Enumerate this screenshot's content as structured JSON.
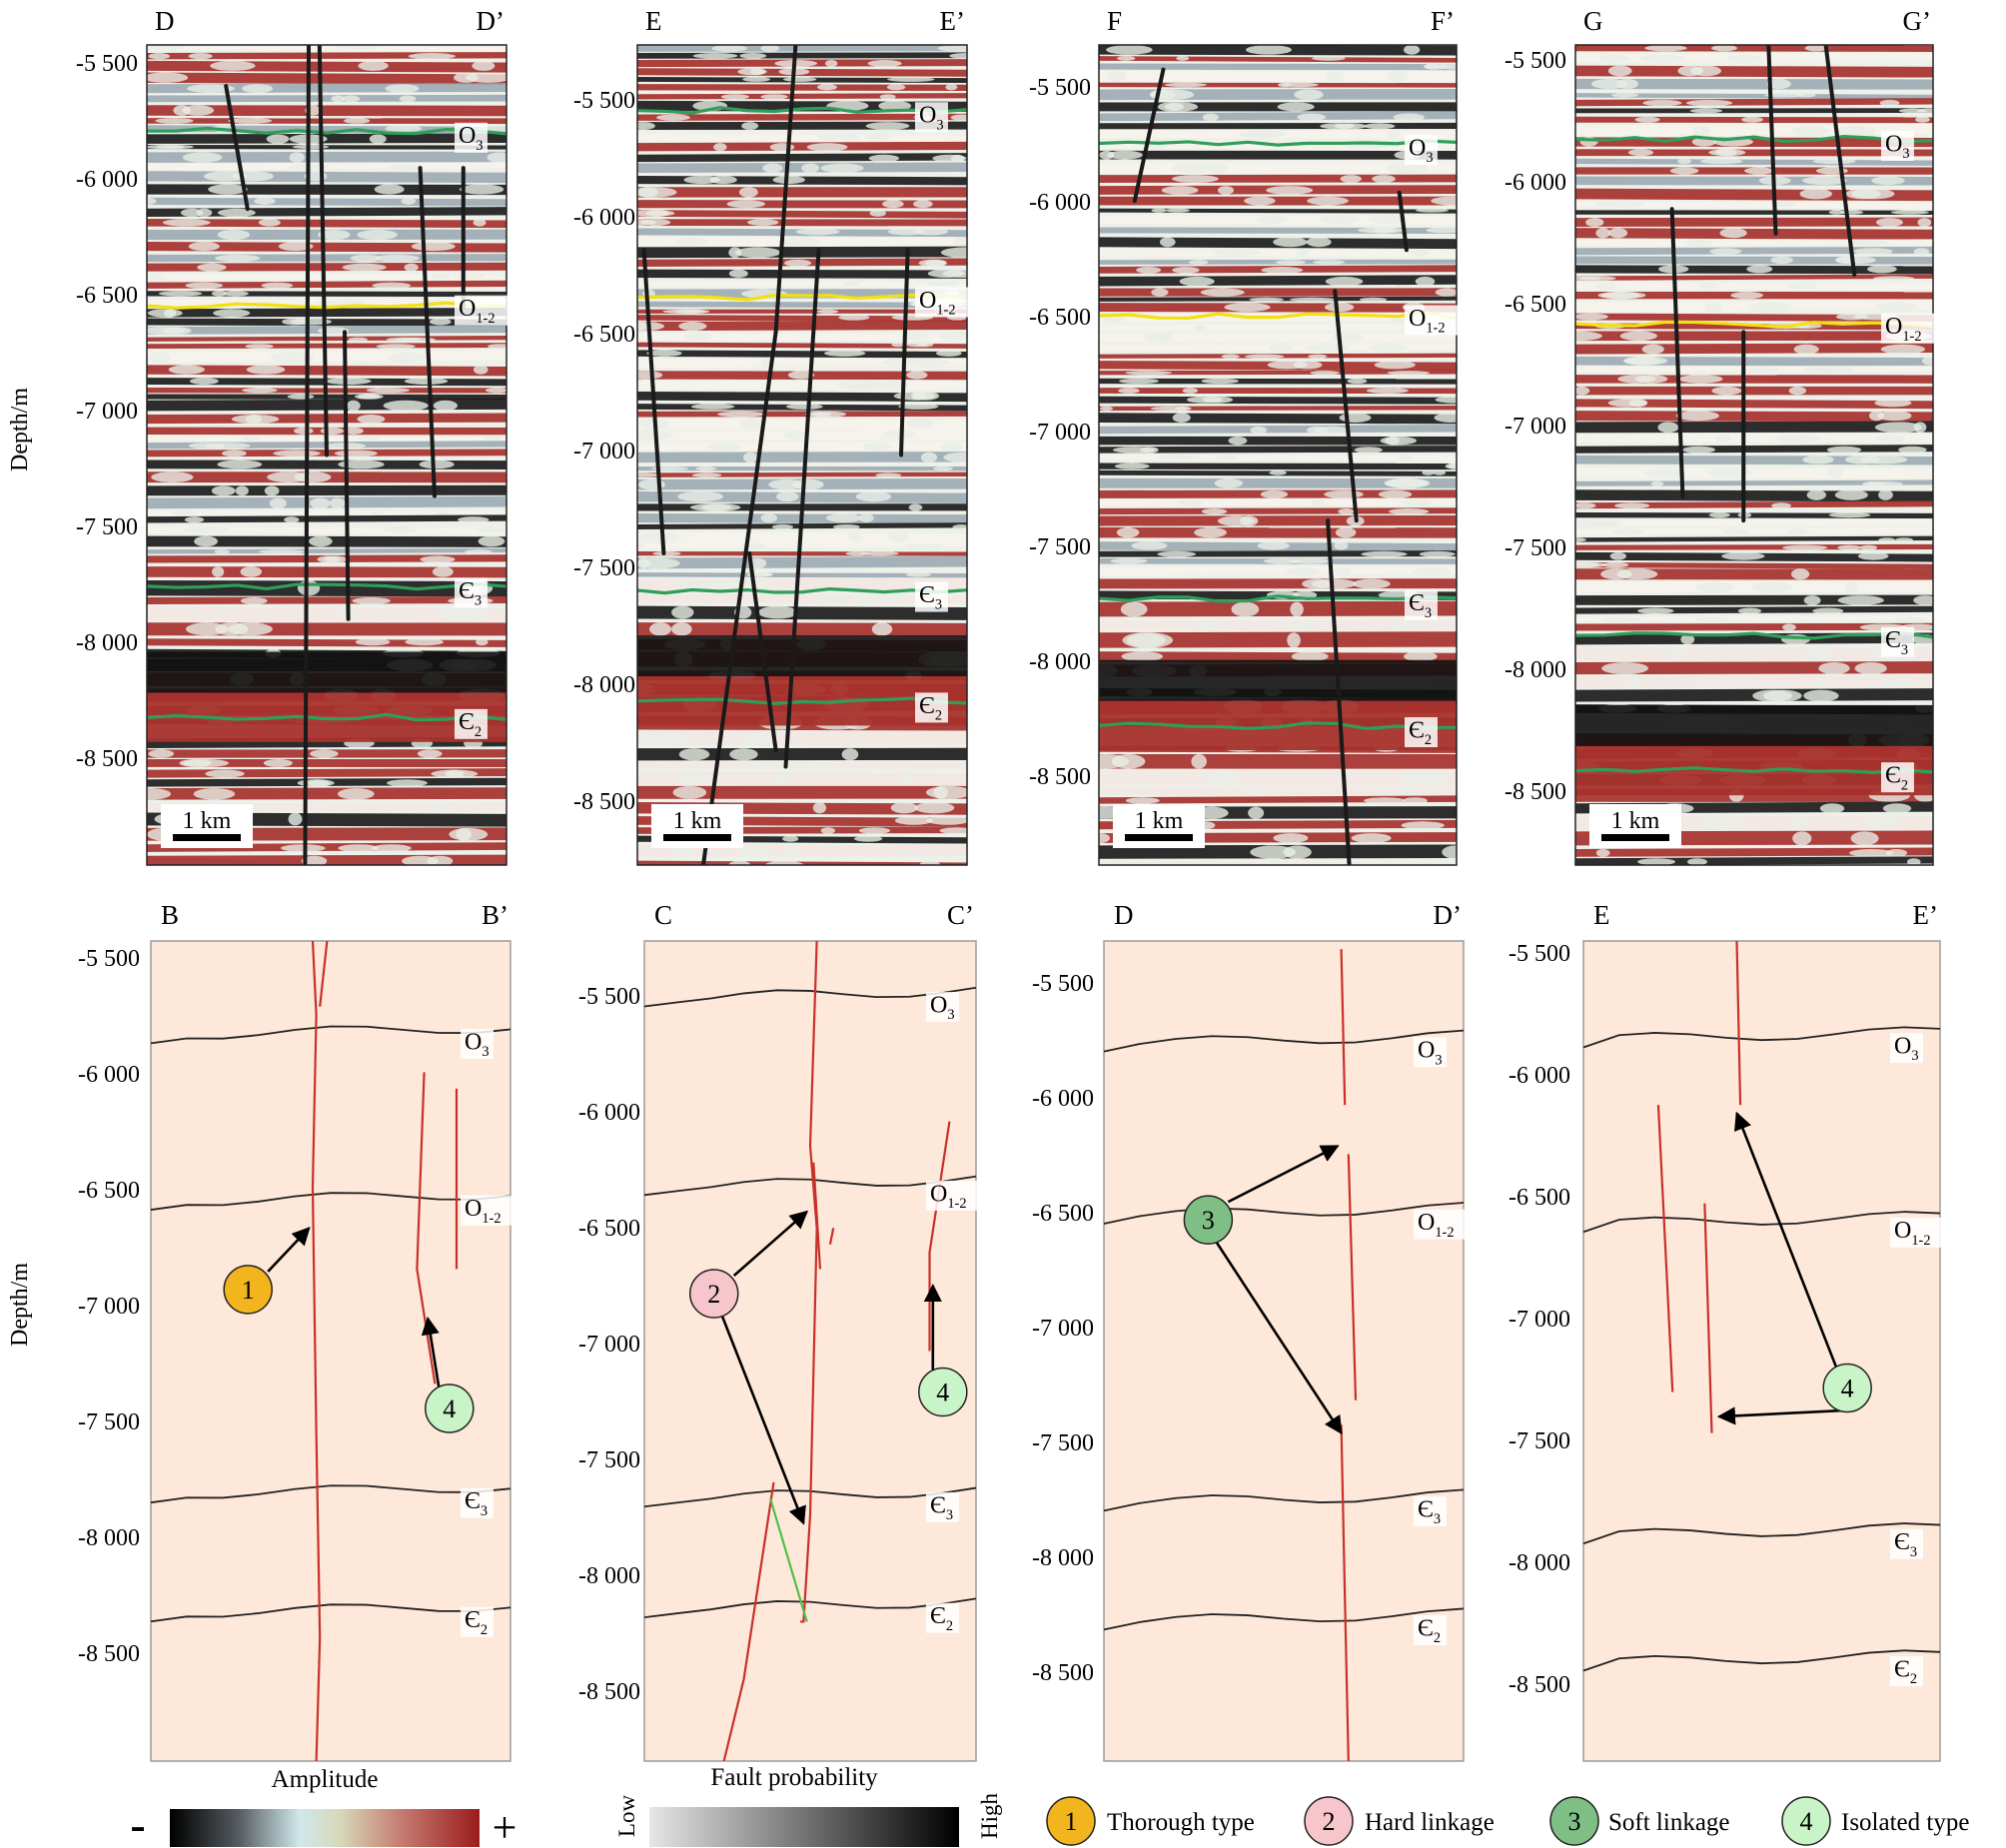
{
  "depth_ticks": [
    "-5 500",
    "-6 000",
    "-6 500",
    "-7 000",
    "-7 500",
    "-8 000",
    "-8 500"
  ],
  "y_axis_label": "Depth/m",
  "scale_bar_label": "1 km",
  "seismic_panels": [
    {
      "start_label": "D",
      "end_label": "D’",
      "horizons": [
        "O3",
        "O1-2",
        "Є3",
        "Є2"
      ]
    },
    {
      "start_label": "E",
      "end_label": "E’",
      "horizons": [
        "O3",
        "O1-2",
        "Є3",
        "Є2"
      ]
    },
    {
      "start_label": "F",
      "end_label": "F’",
      "horizons": [
        "O3",
        "O1-2",
        "Є3",
        "Є2"
      ]
    },
    {
      "start_label": "G",
      "end_label": "G’",
      "horizons": [
        "O3",
        "O1-2",
        "Є3",
        "Є2"
      ]
    }
  ],
  "interpretation_panels": [
    {
      "start_label": "B",
      "end_label": "B’",
      "horizons": [
        "O3",
        "O1-2",
        "Є3",
        "Є2"
      ],
      "markers": [
        "1",
        "4"
      ]
    },
    {
      "start_label": "C",
      "end_label": "C’",
      "horizons": [
        "O3",
        "O1-2",
        "Є3",
        "Є2"
      ],
      "markers": [
        "2",
        "4"
      ]
    },
    {
      "start_label": "D",
      "end_label": "D’",
      "horizons": [
        "O3",
        "O1-2",
        "Є3",
        "Є2"
      ],
      "markers": [
        "3"
      ]
    },
    {
      "start_label": "E",
      "end_label": "E’",
      "horizons": [
        "O3",
        "O1-2",
        "Є3",
        "Є2"
      ],
      "markers": [
        "4"
      ]
    }
  ],
  "amplitude_bar": {
    "title": "Amplitude",
    "min_symbol": "-",
    "max_symbol": "+"
  },
  "fault_probability_bar": {
    "title": "Fault probability",
    "low": "Low",
    "high": "High"
  },
  "legend": [
    {
      "number": "1",
      "label": "Thorough type",
      "color": "#f2b51d"
    },
    {
      "number": "2",
      "label": "Hard linkage",
      "color": "#f7c6cc"
    },
    {
      "number": "3",
      "label": "Soft linkage",
      "color": "#7fbf85"
    },
    {
      "number": "4",
      "label": "Isolated type",
      "color": "#c8f4c8"
    }
  ],
  "colors": {
    "seismic_red": "#a6312c",
    "seismic_black": "#111111",
    "seismic_white": "#f4f4f0",
    "interp_background": "#fde8d9",
    "fault_line": "#c8312a",
    "green_horizon": "#2f9e5a",
    "yellow_horizon": "#f2e010",
    "link_fault": "#4fc04a"
  }
}
